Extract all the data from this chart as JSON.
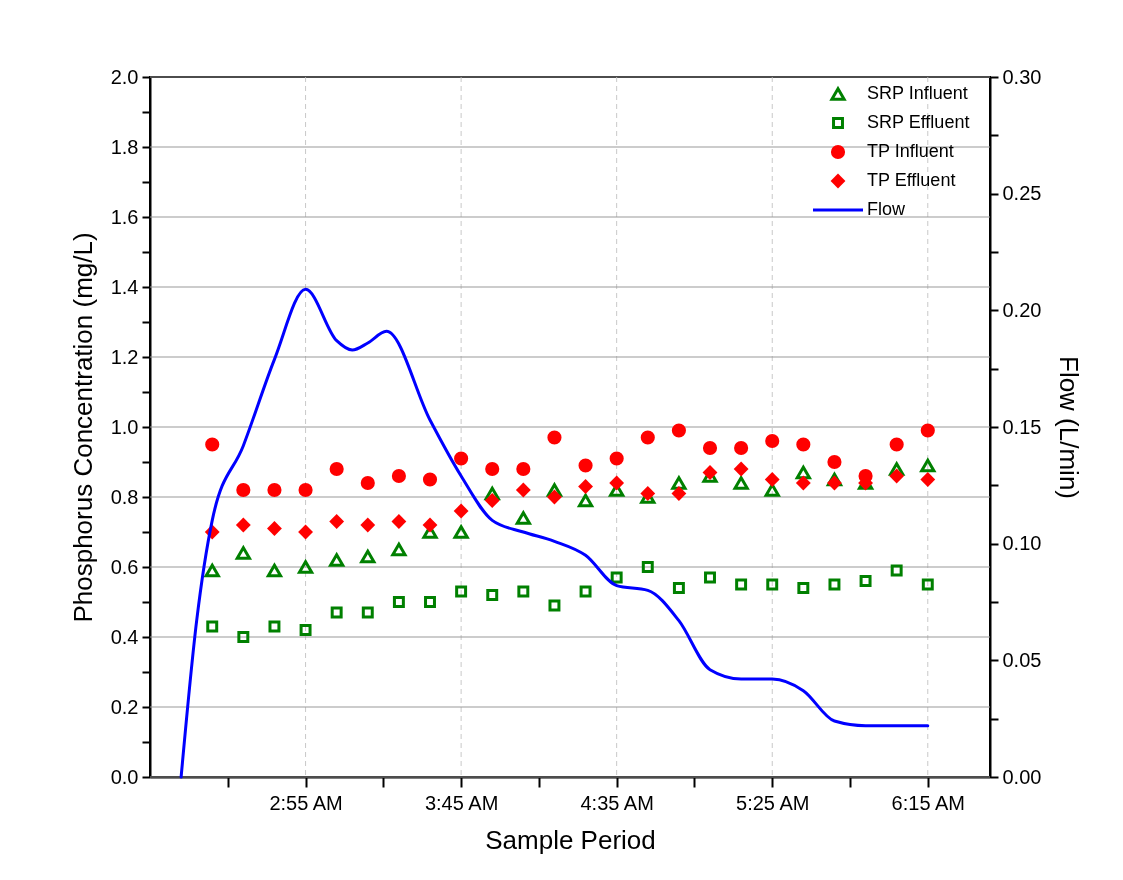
{
  "chart_data": {
    "type": "scatter",
    "xlabel": "Sample Period",
    "ylabel": "Phosphorus Concentration (mg/L)",
    "y2label": "Flow (L/min)",
    "x": [
      2.4167,
      2.5833,
      2.75,
      2.9167,
      3.0833,
      3.25,
      3.4167,
      3.5833,
      3.75,
      3.9167,
      4.0833,
      4.25,
      4.4167,
      4.5833,
      4.75,
      4.9167,
      5.0833,
      5.25,
      5.4167,
      5.5833,
      5.75,
      5.9167,
      6.0833,
      6.25
    ],
    "series": [
      {
        "name": "SRP Influent",
        "marker": "triangle",
        "color": "#008000",
        "values": [
          0.59,
          0.64,
          0.59,
          0.6,
          0.62,
          0.63,
          0.65,
          0.7,
          0.7,
          0.81,
          0.74,
          0.82,
          0.79,
          0.82,
          0.8,
          0.84,
          0.86,
          0.84,
          0.82,
          0.87,
          0.85,
          0.84,
          0.88,
          0.89
        ]
      },
      {
        "name": "SRP Effluent",
        "marker": "square",
        "color": "#008000",
        "values": [
          0.43,
          0.4,
          0.43,
          0.42,
          0.47,
          0.47,
          0.5,
          0.5,
          0.53,
          0.52,
          0.53,
          0.49,
          0.53,
          0.57,
          0.6,
          0.54,
          0.57,
          0.55,
          0.55,
          0.54,
          0.55,
          0.56,
          0.59,
          0.55
        ]
      },
      {
        "name": "TP Influent",
        "marker": "circle",
        "color": "#ff0000",
        "values": [
          0.95,
          0.82,
          0.82,
          0.82,
          0.88,
          0.84,
          0.86,
          0.85,
          0.91,
          0.88,
          0.88,
          0.97,
          0.89,
          0.91,
          0.97,
          0.99,
          0.94,
          0.94,
          0.96,
          0.95,
          0.9,
          0.86,
          0.95,
          0.99
        ]
      },
      {
        "name": "TP Effluent",
        "marker": "diamond",
        "color": "#ff0000",
        "values": [
          0.7,
          0.72,
          0.71,
          0.7,
          0.73,
          0.72,
          0.73,
          0.72,
          0.76,
          0.79,
          0.82,
          0.8,
          0.83,
          0.84,
          0.81,
          0.81,
          0.87,
          0.88,
          0.85,
          0.84,
          0.84,
          0.84,
          0.86,
          0.85
        ]
      },
      {
        "name": "Flow",
        "type": "line",
        "axis": "y2",
        "marker": "none",
        "line_style": "solid",
        "color": "#0000ff",
        "x": [
          2.25,
          2.3333,
          2.4167,
          2.5833,
          2.75,
          2.9167,
          3.0833,
          3.1667,
          3.25,
          3.35,
          3.5833,
          3.75,
          3.9167,
          4.0833,
          4.25,
          4.4167,
          4.5833,
          4.75,
          4.9167,
          5.0833,
          5.25,
          5.4167,
          5.5833,
          5.75,
          5.9167,
          6.0833,
          6.25
        ],
        "values": [
          0,
          0.067,
          0.11,
          0.142,
          0.179,
          0.209,
          0.187,
          0.183,
          0.186,
          0.191,
          0.153,
          0.129,
          0.11,
          0.105,
          0.101,
          0.095,
          0.082,
          0.08,
          0.067,
          0.046,
          0.042,
          0.042,
          0.037,
          0.024,
          0.022,
          0.022,
          0.022
        ]
      }
    ],
    "xlim": [
      2.0833,
      6.5833
    ],
    "xticks": [
      {
        "value": 2.5,
        "label": null
      },
      {
        "value": 2.9167,
        "label": "2:55 AM"
      },
      {
        "value": 3.3333,
        "label": null
      },
      {
        "value": 3.75,
        "label": "3:45 AM"
      },
      {
        "value": 4.1667,
        "label": null
      },
      {
        "value": 4.5833,
        "label": "4:35 AM"
      },
      {
        "value": 5.0,
        "label": null
      },
      {
        "value": 5.4167,
        "label": "5:25 AM"
      },
      {
        "value": 5.8333,
        "label": null
      },
      {
        "value": 6.25,
        "label": "6:15 AM"
      }
    ],
    "ylim": [
      0,
      2
    ],
    "yticks": [
      {
        "value": 0,
        "label": "0.0"
      },
      {
        "value": 0.1,
        "label": null
      },
      {
        "value": 0.2,
        "label": "0.2"
      },
      {
        "value": 0.3,
        "label": null
      },
      {
        "value": 0.4,
        "label": "0.4"
      },
      {
        "value": 0.5,
        "label": null
      },
      {
        "value": 0.6,
        "label": "0.6"
      },
      {
        "value": 0.7,
        "label": null
      },
      {
        "value": 0.8,
        "label": "0.8"
      },
      {
        "value": 0.9,
        "label": null
      },
      {
        "value": 1,
        "label": "1.0"
      },
      {
        "value": 1.1,
        "label": null
      },
      {
        "value": 1.2,
        "label": "1.2"
      },
      {
        "value": 1.3,
        "label": null
      },
      {
        "value": 1.4,
        "label": "1.4"
      },
      {
        "value": 1.5,
        "label": null
      },
      {
        "value": 1.6,
        "label": "1.6"
      },
      {
        "value": 1.7,
        "label": null
      },
      {
        "value": 1.8,
        "label": "1.8"
      },
      {
        "value": 1.9,
        "label": null
      },
      {
        "value": 2,
        "label": "2.0"
      }
    ],
    "y2lim": [
      0,
      0.3
    ],
    "y2ticks": [
      {
        "value": 0,
        "label": "0.00"
      },
      {
        "value": 0.025,
        "label": null
      },
      {
        "value": 0.05,
        "label": "0.05"
      },
      {
        "value": 0.075,
        "label": null
      },
      {
        "value": 0.1,
        "label": "0.10"
      },
      {
        "value": 0.125,
        "label": null
      },
      {
        "value": 0.15,
        "label": "0.15"
      },
      {
        "value": 0.175,
        "label": null
      },
      {
        "value": 0.2,
        "label": "0.20"
      },
      {
        "value": 0.225,
        "label": null
      },
      {
        "value": 0.25,
        "label": "0.25"
      },
      {
        "value": 0.275,
        "label": null
      },
      {
        "value": 0.3,
        "label": "0.30"
      }
    ],
    "grid": true,
    "legend": "top right"
  }
}
